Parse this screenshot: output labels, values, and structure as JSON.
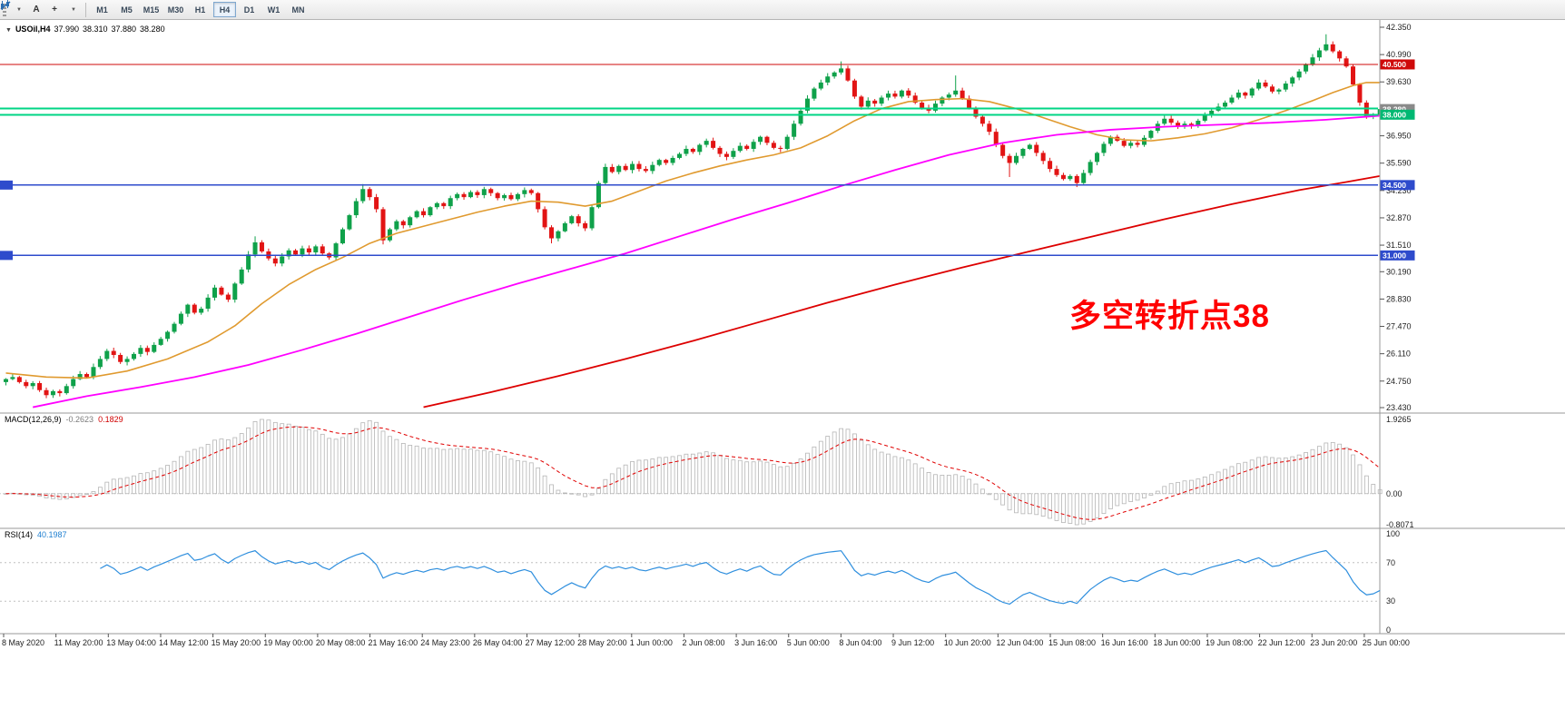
{
  "toolbar": {
    "text_tool_label": "A",
    "crosshair_label": "+",
    "timeframes": [
      "M1",
      "M5",
      "M15",
      "M30",
      "H1",
      "H4",
      "D1",
      "W1",
      "MN"
    ],
    "active_timeframe": "H4"
  },
  "chart": {
    "symbol_line": {
      "symbol": "USOil,H4",
      "open": "37.990",
      "high": "38.310",
      "low": "37.880",
      "close": "38.280"
    },
    "annotation": {
      "text": "多空转折点38",
      "color": "#ff0000"
    },
    "price_axis": {
      "ticks": [
        "42.350",
        "40.990",
        "39.630",
        "36.950",
        "35.590",
        "34.230",
        "32.870",
        "31.510",
        "30.190",
        "28.830",
        "27.470",
        "26.110",
        "24.750",
        "23.430"
      ],
      "tags": [
        {
          "label": "40.500",
          "value": 40.5,
          "bg": "#cf0a0a"
        },
        {
          "label": "38.280",
          "value": 38.28,
          "bg": "#8a8a8a"
        },
        {
          "label": "38.000",
          "value": 38.0,
          "bg": "#00b873"
        },
        {
          "label": "34.500",
          "value": 34.5,
          "bg": "#2e4bcc"
        },
        {
          "label": "31.000",
          "value": 31.0,
          "bg": "#2e4bcc"
        }
      ]
    },
    "time_axis": {
      "labels": [
        "8 May 2020",
        "11 May 20:00",
        "13 May 04:00",
        "14 May 12:00",
        "15 May 20:00",
        "19 May 00:00",
        "20 May 08:00",
        "21 May 16:00",
        "24 May 23:00",
        "26 May 04:00",
        "27 May 12:00",
        "28 May 20:00",
        "1 Jun 00:00",
        "2 Jun 08:00",
        "3 Jun 16:00",
        "5 Jun 00:00",
        "8 Jun 04:00",
        "9 Jun 12:00",
        "10 Jun 20:00",
        "12 Jun 04:00",
        "15 Jun 08:00",
        "16 Jun 16:00",
        "18 Jun 00:00",
        "19 Jun 08:00",
        "22 Jun 12:00",
        "23 Jun 20:00",
        "25 Jun 00:00"
      ]
    }
  },
  "macd": {
    "label": "MACD(12,26,9)",
    "value_main": "-0.2623",
    "value_signal": "0.1829",
    "axis": [
      "1.9265",
      "0.00",
      "-0.8071"
    ],
    "range": [
      -0.8071,
      1.9265
    ],
    "params": {
      "fast": 12,
      "slow": 26,
      "signal": 9
    }
  },
  "rsi": {
    "label": "RSI(14)",
    "value": "40.1987",
    "period": 14,
    "axis": [
      "100",
      "70",
      "30",
      "0"
    ],
    "levels": [
      30,
      70
    ]
  },
  "chart_data": {
    "type": "candlestick",
    "symbol": "USOil",
    "timeframe": "H4",
    "title": "USOil,H4",
    "price_range": [
      23.43,
      42.35
    ],
    "last_quote": {
      "open": 37.99,
      "high": 38.31,
      "low": 37.88,
      "close": 38.28
    },
    "first_open": 24.7,
    "up_color": "#0fa14a",
    "down_color": "#e21414",
    "closes": [
      24.85,
      24.95,
      24.7,
      24.5,
      24.65,
      24.3,
      24.05,
      24.25,
      24.15,
      24.5,
      24.85,
      25.1,
      24.95,
      25.45,
      25.85,
      26.25,
      26.05,
      25.7,
      25.85,
      26.1,
      26.4,
      26.2,
      26.55,
      26.85,
      27.2,
      27.6,
      28.1,
      28.55,
      28.15,
      28.35,
      28.9,
      29.4,
      29.05,
      28.8,
      29.6,
      30.3,
      31.05,
      31.65,
      31.2,
      30.85,
      30.6,
      30.95,
      31.25,
      31.05,
      31.35,
      31.15,
      31.45,
      31.1,
      30.9,
      31.6,
      32.3,
      33.0,
      33.7,
      34.3,
      33.9,
      33.3,
      31.75,
      32.3,
      32.7,
      32.5,
      32.9,
      33.2,
      33.0,
      33.4,
      33.6,
      33.45,
      33.85,
      34.05,
      33.9,
      34.15,
      34.0,
      34.3,
      34.1,
      33.85,
      34.0,
      33.8,
      34.05,
      34.25,
      34.1,
      33.3,
      32.4,
      31.85,
      32.2,
      32.6,
      32.95,
      32.6,
      32.35,
      33.4,
      34.6,
      35.4,
      35.15,
      35.45,
      35.25,
      35.55,
      35.3,
      35.2,
      35.5,
      35.75,
      35.6,
      35.85,
      36.05,
      36.3,
      36.15,
      36.5,
      36.7,
      36.35,
      36.05,
      35.9,
      36.2,
      36.45,
      36.3,
      36.65,
      36.9,
      36.6,
      36.35,
      36.3,
      36.9,
      37.55,
      38.2,
      38.8,
      39.3,
      39.6,
      39.9,
      40.1,
      40.3,
      39.7,
      38.9,
      38.4,
      38.7,
      38.55,
      38.85,
      39.05,
      38.9,
      39.2,
      38.95,
      38.6,
      38.35,
      38.2,
      38.55,
      38.85,
      39.0,
      39.2,
      38.8,
      38.35,
      37.9,
      37.55,
      37.15,
      36.5,
      35.95,
      35.6,
      35.95,
      36.3,
      36.5,
      36.1,
      35.7,
      35.3,
      35.0,
      34.8,
      34.95,
      34.6,
      35.1,
      35.65,
      36.1,
      36.55,
      36.9,
      36.7,
      36.45,
      36.6,
      36.5,
      36.85,
      37.2,
      37.55,
      37.8,
      37.6,
      37.4,
      37.55,
      37.45,
      37.7,
      37.95,
      38.2,
      38.4,
      38.6,
      38.85,
      39.1,
      38.95,
      39.3,
      39.6,
      39.4,
      39.15,
      39.25,
      39.55,
      39.85,
      40.15,
      40.5,
      40.85,
      41.2,
      41.5,
      41.15,
      40.8,
      40.4,
      39.5,
      38.6,
      37.9,
      37.99,
      38.28
    ],
    "wick_overrides": {
      "6": [
        null,
        23.9
      ],
      "37": [
        31.95,
        null
      ],
      "53": [
        34.55,
        null
      ],
      "56": [
        null,
        31.55
      ],
      "81": [
        null,
        31.6
      ],
      "124": [
        40.65,
        null
      ],
      "141": [
        39.95,
        null
      ],
      "149": [
        null,
        34.9
      ],
      "159": [
        null,
        34.4
      ],
      "196": [
        42.0,
        null
      ],
      "204": [
        38.31,
        37.88
      ]
    },
    "moving_averages": [
      {
        "name": "ma-fast-orange",
        "color": "#e09a2f",
        "width": 1.6,
        "points": [
          [
            0,
            25.15
          ],
          [
            6,
            24.95
          ],
          [
            12,
            24.9
          ],
          [
            18,
            25.25
          ],
          [
            24,
            25.85
          ],
          [
            30,
            26.7
          ],
          [
            34,
            27.5
          ],
          [
            38,
            28.6
          ],
          [
            42,
            29.55
          ],
          [
            46,
            30.3
          ],
          [
            50,
            30.9
          ],
          [
            54,
            31.6
          ],
          [
            58,
            32.1
          ],
          [
            62,
            32.45
          ],
          [
            66,
            32.8
          ],
          [
            70,
            33.15
          ],
          [
            74,
            33.45
          ],
          [
            78,
            33.7
          ],
          [
            82,
            33.65
          ],
          [
            86,
            33.45
          ],
          [
            90,
            33.7
          ],
          [
            94,
            34.2
          ],
          [
            98,
            34.7
          ],
          [
            102,
            35.1
          ],
          [
            106,
            35.45
          ],
          [
            110,
            35.75
          ],
          [
            114,
            36.0
          ],
          [
            118,
            36.35
          ],
          [
            122,
            36.95
          ],
          [
            126,
            37.7
          ],
          [
            130,
            38.3
          ],
          [
            134,
            38.65
          ],
          [
            138,
            38.75
          ],
          [
            142,
            38.8
          ],
          [
            146,
            38.65
          ],
          [
            150,
            38.3
          ],
          [
            154,
            37.85
          ],
          [
            158,
            37.4
          ],
          [
            162,
            37.0
          ],
          [
            166,
            36.75
          ],
          [
            170,
            36.7
          ],
          [
            174,
            36.85
          ],
          [
            178,
            37.05
          ],
          [
            182,
            37.35
          ],
          [
            186,
            37.75
          ],
          [
            190,
            38.2
          ],
          [
            194,
            38.7
          ],
          [
            197,
            39.1
          ],
          [
            200,
            39.45
          ],
          [
            202,
            39.6
          ],
          [
            204,
            39.6
          ]
        ]
      },
      {
        "name": "ma-mid-magenta",
        "color": "#ff00ff",
        "width": 1.8,
        "points": [
          [
            4,
            23.45
          ],
          [
            12,
            24.0
          ],
          [
            20,
            24.45
          ],
          [
            28,
            24.95
          ],
          [
            36,
            25.55
          ],
          [
            44,
            26.3
          ],
          [
            52,
            27.1
          ],
          [
            60,
            27.95
          ],
          [
            68,
            28.8
          ],
          [
            76,
            29.6
          ],
          [
            84,
            30.35
          ],
          [
            92,
            31.1
          ],
          [
            100,
            31.95
          ],
          [
            108,
            32.8
          ],
          [
            116,
            33.6
          ],
          [
            124,
            34.45
          ],
          [
            132,
            35.25
          ],
          [
            140,
            36.0
          ],
          [
            148,
            36.6
          ],
          [
            156,
            37.0
          ],
          [
            164,
            37.25
          ],
          [
            172,
            37.4
          ],
          [
            180,
            37.5
          ],
          [
            188,
            37.6
          ],
          [
            196,
            37.75
          ],
          [
            204,
            37.95
          ]
        ]
      },
      {
        "name": "ma-slow-red",
        "color": "#dd0000",
        "width": 1.8,
        "points": [
          [
            62,
            23.45
          ],
          [
            72,
            24.2
          ],
          [
            82,
            25.0
          ],
          [
            92,
            25.85
          ],
          [
            102,
            26.75
          ],
          [
            112,
            27.7
          ],
          [
            122,
            28.65
          ],
          [
            132,
            29.55
          ],
          [
            142,
            30.4
          ],
          [
            152,
            31.2
          ],
          [
            162,
            32.0
          ],
          [
            172,
            32.8
          ],
          [
            182,
            33.55
          ],
          [
            192,
            34.25
          ],
          [
            199,
            34.65
          ],
          [
            204,
            34.95
          ]
        ]
      }
    ],
    "hlines": [
      {
        "value": 40.5,
        "color": "#cf0a0a",
        "width": 1.2,
        "left_marker": false
      },
      {
        "value": 38.3,
        "color": "#00d584",
        "width": 2,
        "left_marker": false
      },
      {
        "value": 38.0,
        "color": "#00d584",
        "width": 2,
        "left_marker": false
      },
      {
        "value": 34.5,
        "color": "#2e4bcc",
        "width": 1.6,
        "left_marker": true
      },
      {
        "value": 31.0,
        "color": "#2e4bcc",
        "width": 1.6,
        "left_marker": true
      }
    ]
  }
}
